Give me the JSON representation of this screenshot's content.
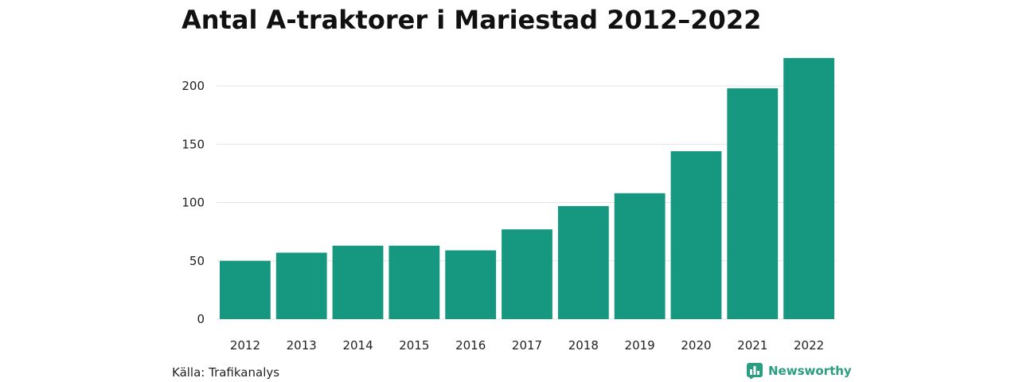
{
  "chart_data": {
    "type": "bar",
    "title": "Antal A-traktorer i Mariestad 2012–2022",
    "categories": [
      "2012",
      "2013",
      "2014",
      "2015",
      "2016",
      "2017",
      "2018",
      "2019",
      "2020",
      "2021",
      "2022"
    ],
    "values": [
      50,
      57,
      63,
      63,
      59,
      77,
      97,
      108,
      144,
      198,
      224
    ],
    "xlabel": "",
    "ylabel": "",
    "ylim": [
      0,
      224
    ],
    "yticks": [
      0,
      50,
      100,
      150,
      200
    ],
    "grid": true,
    "bar_color": "#16977f"
  },
  "footer": {
    "source": "Källa: Trafikanalys",
    "brand": "Newsworthy",
    "brand_color": "#2a9d82",
    "brand_icon": "bar-chart-icon"
  }
}
